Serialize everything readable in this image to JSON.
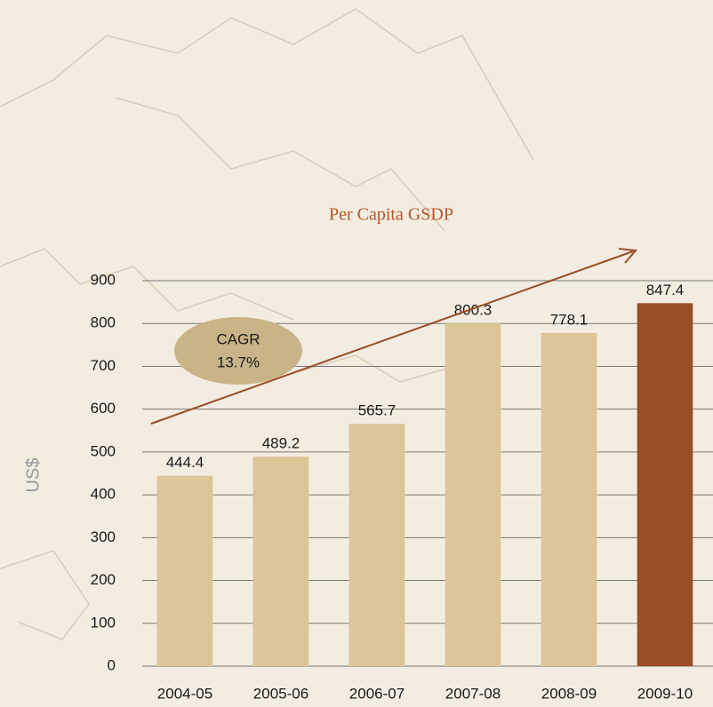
{
  "chart_data": {
    "type": "bar",
    "title": "Per Capita GSDP",
    "y_label": "US$",
    "categories": [
      "2004-05",
      "2005-06",
      "2006-07",
      "2007-08",
      "2008-09",
      "2009-10"
    ],
    "values": [
      444.4,
      489.2,
      565.7,
      800.3,
      778.1,
      847.4
    ],
    "colors": [
      "#dcc596",
      "#dcc596",
      "#dcc596",
      "#dcc596",
      "#dcc596",
      "#9a4e27"
    ],
    "ylim": [
      0,
      900
    ],
    "yticks": [
      0,
      100,
      200,
      300,
      400,
      500,
      600,
      700,
      800,
      900
    ],
    "grid": true,
    "annotations": {
      "cagr_label": "CAGR",
      "cagr_value": "13.7%"
    }
  }
}
